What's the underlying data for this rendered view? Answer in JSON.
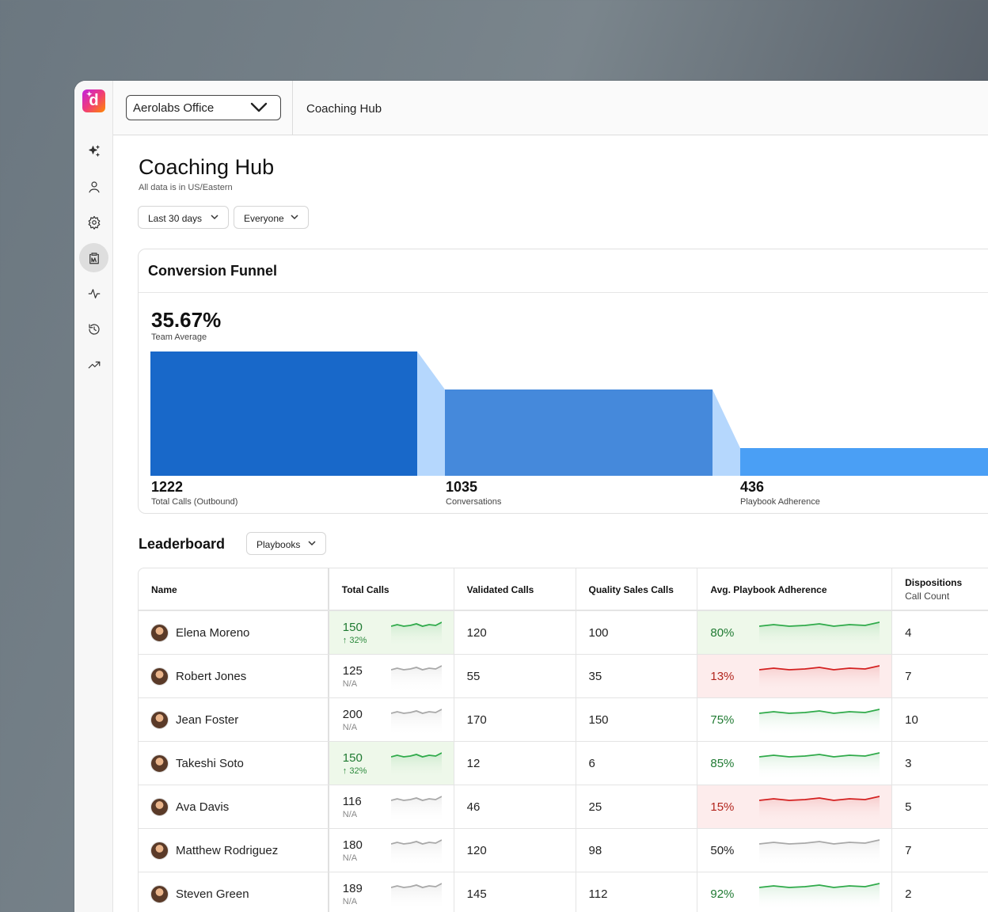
{
  "topbar": {
    "org": "Aerolabs Office",
    "title": "Coaching Hub"
  },
  "rail": {
    "icons": [
      "sparkles-icon",
      "user-icon",
      "settings-icon",
      "coaching-icon",
      "activity-icon",
      "history-icon",
      "trending-icon"
    ],
    "active": "coaching-icon"
  },
  "page": {
    "title": "Coaching Hub",
    "subtitle": "All data is in US/Eastern",
    "filters": {
      "range": "Last 30 days",
      "people": "Everyone"
    }
  },
  "funnel": {
    "title": "Conversion Funnel",
    "team_average": "35.67%",
    "team_average_label": "Team Average",
    "stages": [
      {
        "value": "1222",
        "label": "Total Calls (Outbound)"
      },
      {
        "value": "1035",
        "label": "Conversations"
      },
      {
        "value": "436",
        "label": "Playbook Adherence"
      }
    ],
    "colors": [
      "#1868c9",
      "#4589db",
      "#4a9ff5"
    ],
    "connector_color": "#b5d7fd"
  },
  "leaderboard": {
    "title": "Leaderboard",
    "filter": "Playbooks",
    "columns": {
      "name": "Name",
      "total": "Total Calls",
      "valid": "Validated Calls",
      "quality": "Quality Sales Calls",
      "adherence": "Avg. Playbook Adherence",
      "dispositions": "Dispositions",
      "dispositions_sub": "Call Count"
    },
    "rows": [
      {
        "name": "Elena Moreno",
        "total": "150",
        "total_sub": "↑ 32%",
        "trend": "green",
        "valid": "120",
        "quality": "100",
        "adherence": "80%",
        "adh_trend": "green",
        "dispositions": "4"
      },
      {
        "name": "Robert Jones",
        "total": "125",
        "total_sub": "N/A",
        "trend": "gray",
        "valid": "55",
        "quality": "35",
        "adherence": "13%",
        "adh_trend": "red",
        "dispositions": "7"
      },
      {
        "name": "Jean Foster",
        "total": "200",
        "total_sub": "N/A",
        "trend": "gray",
        "valid": "170",
        "quality": "150",
        "adherence": "75%",
        "adh_trend": "green-plain",
        "dispositions": "10"
      },
      {
        "name": "Takeshi Soto",
        "total": "150",
        "total_sub": "↑ 32%",
        "trend": "green",
        "valid": "12",
        "quality": "6",
        "adherence": "85%",
        "adh_trend": "green-plain",
        "dispositions": "3"
      },
      {
        "name": "Ava Davis",
        "total": "116",
        "total_sub": "N/A",
        "trend": "gray",
        "valid": "46",
        "quality": "25",
        "adherence": "15%",
        "adh_trend": "red",
        "dispositions": "5"
      },
      {
        "name": "Matthew Rodriguez",
        "total": "180",
        "total_sub": "N/A",
        "trend": "gray",
        "valid": "120",
        "quality": "98",
        "adherence": "50%",
        "adh_trend": "gray",
        "dispositions": "7"
      },
      {
        "name": "Steven Green",
        "total": "189",
        "total_sub": "N/A",
        "trend": "gray",
        "valid": "145",
        "quality": "112",
        "adherence": "92%",
        "adh_trend": "green-plain",
        "dispositions": "2"
      }
    ]
  }
}
